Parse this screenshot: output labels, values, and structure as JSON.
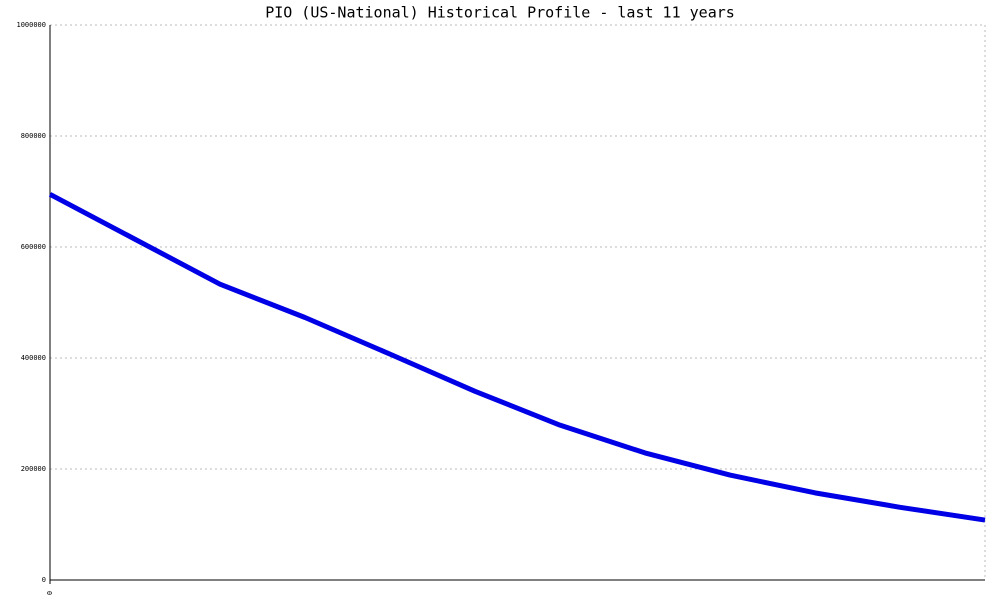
{
  "chart_data": {
    "type": "line",
    "title": "PIO (US-National) Historical Profile - last 11 years",
    "x": [
      0,
      1,
      2,
      3,
      4,
      5,
      6,
      7,
      8,
      9,
      10,
      11
    ],
    "series": [
      {
        "name": "PIO",
        "color": "#0000e6",
        "values": [
          695000,
          614000,
          533000,
          473000,
          407000,
          340000,
          279000,
          229000,
          189000,
          157000,
          131000,
          108000
        ]
      }
    ],
    "xlim": [
      0,
      11
    ],
    "xticks": [
      0
    ],
    "ylim": [
      0,
      1000000
    ],
    "yticks": [
      0,
      200000,
      400000,
      600000,
      800000,
      1000000
    ],
    "grid": true
  }
}
